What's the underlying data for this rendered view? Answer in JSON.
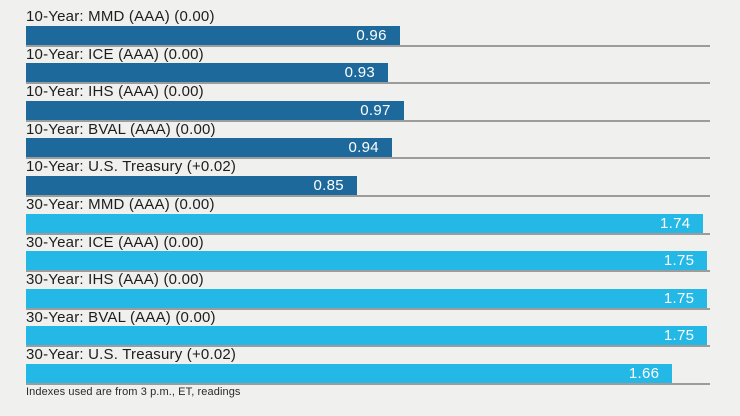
{
  "page": {
    "background_color": "#f0f0ee"
  },
  "chart_data": {
    "type": "bar",
    "orientation": "horizontal",
    "categories": [
      "10-Year: MMD (AAA) (0.00)",
      "10-Year: ICE (AAA) (0.00)",
      "10-Year: IHS (AAA) (0.00)",
      "10-Year: BVAL (AAA) (0.00)",
      "10-Year: U.S. Treasury (+0.02)",
      "30-Year: MMD (AAA) (0.00)",
      "30-Year: ICE (AAA) (0.00)",
      "30-Year: IHS (AAA) (0.00)",
      "30-Year: BVAL (AAA) (0.00)",
      "30-Year: U.S. Treasury (+0.02)"
    ],
    "values": [
      0.96,
      0.93,
      0.97,
      0.94,
      0.85,
      1.74,
      1.75,
      1.75,
      1.75,
      1.66
    ],
    "groups": [
      "10-year",
      "10-year",
      "10-year",
      "10-year",
      "10-year",
      "30-year",
      "30-year",
      "30-year",
      "30-year",
      "30-year"
    ],
    "value_labels": [
      "0.96",
      "0.93",
      "0.97",
      "0.94",
      "0.85",
      "1.74",
      "1.75",
      "1.75",
      "1.75",
      "1.66"
    ],
    "xlim": [
      0,
      1.757
    ],
    "grid": false,
    "legend": false,
    "title": "",
    "xlabel": "",
    "ylabel": "",
    "bar_colors": {
      "10-year": "#1e699c",
      "30-year": "#24b8e6"
    },
    "value_label_color": "#ffffff",
    "separator_color": "#9c9c9c",
    "label_color": "#1d1d1d",
    "footnote": "Indexes used are from 3 p.m., ET, readings"
  }
}
